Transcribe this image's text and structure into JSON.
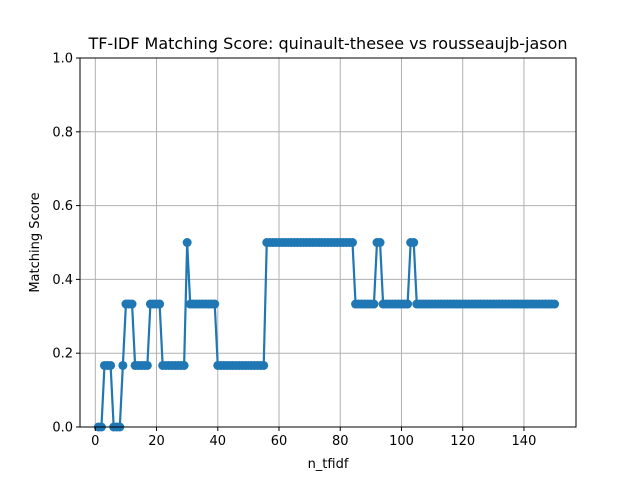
{
  "chart_data": {
    "type": "line",
    "title": "TF-IDF Matching Score: quinault-thesee vs rousseaujb-jason",
    "xlabel": "n_tfidf",
    "ylabel": "Matching Score",
    "xlim": [
      -5,
      157
    ],
    "ylim": [
      0,
      1
    ],
    "xticks": [
      0,
      20,
      40,
      60,
      80,
      100,
      120,
      140
    ],
    "yticks": [
      0.0,
      0.2,
      0.4,
      0.6,
      0.8,
      1.0
    ],
    "ytick_labels": [
      "0.0",
      "0.2",
      "0.4",
      "0.6",
      "0.8",
      "1.0"
    ],
    "grid": true,
    "marker": "circle",
    "series": [
      {
        "color": "#1f77b4",
        "x": [
          1,
          2,
          3,
          4,
          5,
          6,
          7,
          8,
          9,
          10,
          11,
          12,
          13,
          14,
          15,
          16,
          17,
          18,
          19,
          20,
          21,
          22,
          23,
          24,
          25,
          26,
          27,
          28,
          29,
          30,
          31,
          32,
          33,
          34,
          35,
          36,
          37,
          38,
          39,
          40,
          41,
          42,
          43,
          44,
          45,
          46,
          47,
          48,
          49,
          50,
          51,
          52,
          53,
          54,
          55,
          56,
          57,
          58,
          59,
          60,
          61,
          62,
          63,
          64,
          65,
          66,
          67,
          68,
          69,
          70,
          71,
          72,
          73,
          74,
          75,
          76,
          77,
          78,
          79,
          80,
          81,
          82,
          83,
          84,
          85,
          86,
          87,
          88,
          89,
          90,
          91,
          92,
          93,
          94,
          95,
          96,
          97,
          98,
          99,
          100,
          101,
          102,
          103,
          104,
          105,
          106,
          107,
          108,
          109,
          110,
          111,
          112,
          113,
          114,
          115,
          116,
          117,
          118,
          119,
          120,
          121,
          122,
          123,
          124,
          125,
          126,
          127,
          128,
          129,
          130,
          131,
          132,
          133,
          134,
          135,
          136,
          137,
          138,
          139,
          140,
          141,
          142,
          143,
          144,
          145,
          146,
          147,
          148,
          149,
          150
        ],
        "y": [
          0,
          0,
          0.1667,
          0.1667,
          0.1667,
          0,
          0,
          0,
          0.1667,
          0.3333,
          0.3333,
          0.3333,
          0.1667,
          0.1667,
          0.1667,
          0.1667,
          0.1667,
          0.3333,
          0.3333,
          0.3333,
          0.3333,
          0.1667,
          0.1667,
          0.1667,
          0.1667,
          0.1667,
          0.1667,
          0.1667,
          0.1667,
          0.5,
          0.3333,
          0.3333,
          0.3333,
          0.3333,
          0.3333,
          0.3333,
          0.3333,
          0.3333,
          0.3333,
          0.1667,
          0.1667,
          0.1667,
          0.1667,
          0.1667,
          0.1667,
          0.1667,
          0.1667,
          0.1667,
          0.1667,
          0.1667,
          0.1667,
          0.1667,
          0.1667,
          0.1667,
          0.1667,
          0.5,
          0.5,
          0.5,
          0.5,
          0.5,
          0.5,
          0.5,
          0.5,
          0.5,
          0.5,
          0.5,
          0.5,
          0.5,
          0.5,
          0.5,
          0.5,
          0.5,
          0.5,
          0.5,
          0.5,
          0.5,
          0.5,
          0.5,
          0.5,
          0.5,
          0.5,
          0.5,
          0.5,
          0.5,
          0.3333,
          0.3333,
          0.3333,
          0.3333,
          0.3333,
          0.3333,
          0.3333,
          0.5,
          0.5,
          0.3333,
          0.3333,
          0.3333,
          0.3333,
          0.3333,
          0.3333,
          0.3333,
          0.3333,
          0.3333,
          0.5,
          0.5,
          0.3333,
          0.3333,
          0.3333,
          0.3333,
          0.3333,
          0.3333,
          0.3333,
          0.3333,
          0.3333,
          0.3333,
          0.3333,
          0.3333,
          0.3333,
          0.3333,
          0.3333,
          0.3333,
          0.3333,
          0.3333,
          0.3333,
          0.3333,
          0.3333,
          0.3333,
          0.3333,
          0.3333,
          0.3333,
          0.3333,
          0.3333,
          0.3333,
          0.3333,
          0.3333,
          0.3333,
          0.3333,
          0.3333,
          0.3333,
          0.3333,
          0.3333,
          0.3333,
          0.3333,
          0.3333,
          0.3333,
          0.3333,
          0.3333,
          0.3333,
          0.3333,
          0.3333,
          0.3333
        ]
      }
    ]
  }
}
